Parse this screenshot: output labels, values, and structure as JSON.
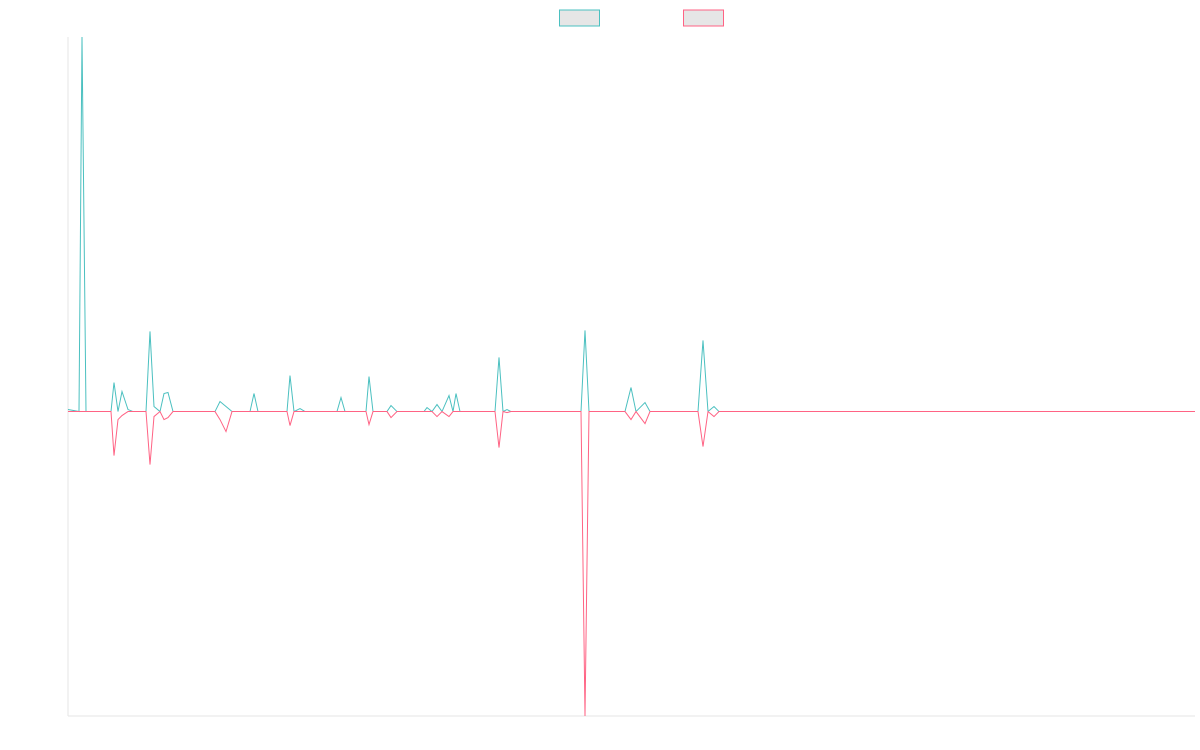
{
  "chart_data": {
    "type": "line",
    "x": [
      0,
      11,
      14,
      18,
      43,
      46,
      50,
      54,
      60,
      65,
      78,
      82,
      86,
      92,
      96,
      100,
      105,
      147,
      152,
      158,
      164,
      182,
      186,
      190,
      219,
      222,
      226,
      232,
      237,
      269,
      273,
      277,
      298,
      301,
      305,
      319,
      323,
      329,
      356,
      359,
      364,
      369,
      374,
      381,
      385,
      388,
      392,
      427,
      431,
      435,
      439,
      443,
      513,
      517,
      521,
      557,
      563,
      568,
      577,
      582,
      630,
      635,
      640,
      646,
      651,
      1127
    ],
    "xlim": [
      0,
      1127
    ],
    "ylim": [
      -304,
      374
    ],
    "legend": "top",
    "series": [
      {
        "color": "#4bc0c0",
        "values": [
          2,
          0,
          374,
          0,
          0,
          29,
          0,
          20,
          2,
          0,
          0,
          80,
          5,
          0,
          18,
          19,
          0,
          0,
          10,
          5,
          0,
          0,
          18,
          0,
          0,
          36,
          0,
          3,
          0,
          0,
          14,
          0,
          0,
          35,
          0,
          0,
          6,
          0,
          0,
          4,
          0,
          7,
          0,
          16,
          0,
          18,
          0,
          0,
          54,
          0,
          2,
          0,
          0,
          81,
          0,
          0,
          24,
          0,
          9,
          0,
          0,
          71,
          0,
          5,
          0,
          0
        ]
      },
      {
        "color": "#ff6384",
        "values": [
          0,
          0,
          0,
          0,
          0,
          -44,
          -8,
          -4,
          0,
          0,
          0,
          -53,
          -5,
          0,
          -8,
          -6,
          0,
          0,
          -8,
          -20,
          0,
          0,
          0,
          0,
          0,
          -14,
          0,
          0,
          0,
          0,
          0,
          0,
          0,
          -13,
          0,
          0,
          -6,
          0,
          0,
          0,
          0,
          -5,
          0,
          -5,
          0,
          0,
          0,
          0,
          -36,
          0,
          -1,
          0,
          0,
          -304,
          0,
          0,
          -8,
          0,
          -12,
          0,
          0,
          -35,
          0,
          -5,
          0,
          0
        ]
      }
    ]
  }
}
